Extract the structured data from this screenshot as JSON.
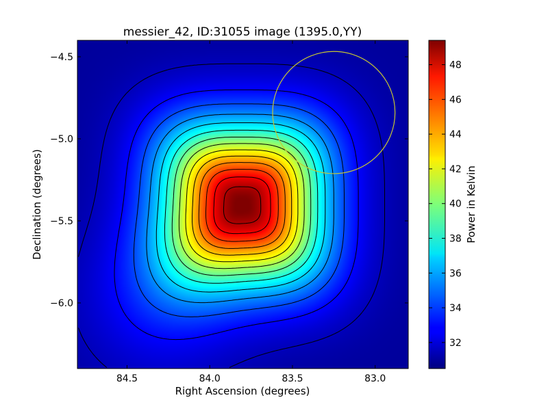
{
  "chart_data": {
    "type": "heatmap",
    "title": "messier_42, ID:31055 image (1395.0,YY)",
    "xlabel": "Right Ascension (degrees)",
    "ylabel": "Declination (degrees)",
    "colorbar_label": "Power in Kelvin",
    "xlim": [
      84.8,
      82.8
    ],
    "ylim": [
      -6.4,
      -4.4
    ],
    "x_inverted": true,
    "x_ticks": [
      {
        "value": 84.5,
        "label": "84.5"
      },
      {
        "value": 84.0,
        "label": "84.0"
      },
      {
        "value": 83.5,
        "label": "83.5"
      },
      {
        "value": 83.0,
        "label": "83.0"
      }
    ],
    "y_ticks": [
      {
        "value": -4.5,
        "label": "−4.5"
      },
      {
        "value": -5.0,
        "label": "−5.0"
      },
      {
        "value": -5.5,
        "label": "−5.5"
      },
      {
        "value": -6.0,
        "label": "−6.0"
      }
    ],
    "colorbar_range": [
      30.5,
      49.4
    ],
    "colorbar_ticks": [
      {
        "value": 32,
        "label": "32"
      },
      {
        "value": 34,
        "label": "34"
      },
      {
        "value": 36,
        "label": "36"
      },
      {
        "value": 38,
        "label": "38"
      },
      {
        "value": 40,
        "label": "40"
      },
      {
        "value": 42,
        "label": "42"
      },
      {
        "value": 44,
        "label": "44"
      },
      {
        "value": 46,
        "label": "46"
      },
      {
        "value": 48,
        "label": "48"
      }
    ],
    "colormap": "jet",
    "peak": {
      "ra": 83.8,
      "dec": -5.4,
      "value": 49.4
    },
    "background_value": 31.0,
    "contour_levels": [
      31.6,
      32.9,
      34.2,
      35.5,
      36.8,
      38.1,
      39.4,
      40.7,
      42.0,
      43.3,
      44.6,
      45.9,
      47.2,
      48.5
    ],
    "contour_color": "#000000",
    "beam_circle": {
      "ra": 83.25,
      "dec": -4.84,
      "radius_deg": 0.37,
      "color": "#c8c832"
    },
    "grid": false,
    "legend": "none"
  }
}
